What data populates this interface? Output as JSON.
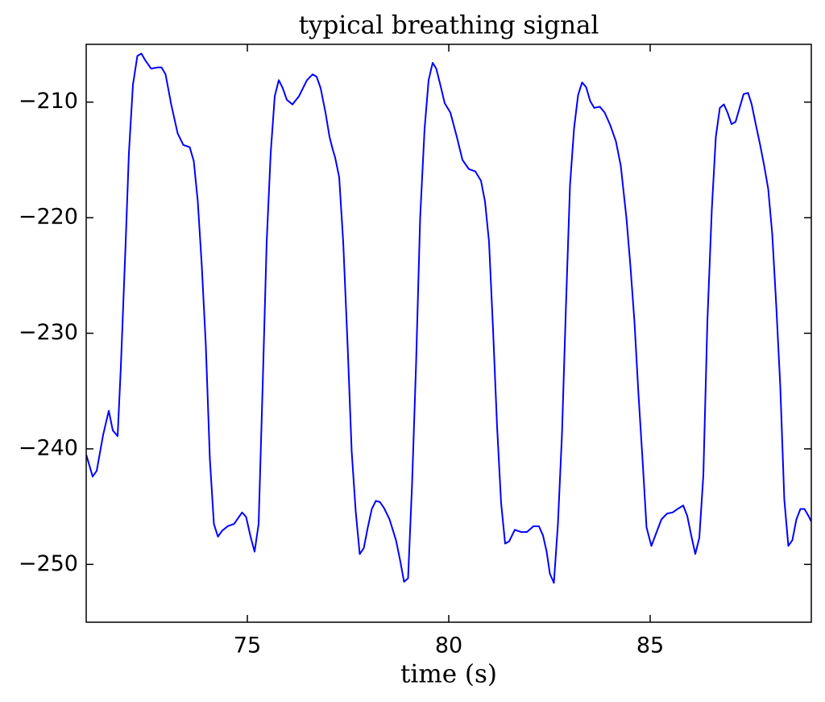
{
  "chart_data": {
    "type": "line",
    "title": "typical breathing signal",
    "xlabel": "time (s)",
    "x": [
      71.0,
      71.16,
      71.26,
      71.42,
      71.56,
      71.66,
      71.78,
      71.86,
      71.98,
      72.06,
      72.16,
      72.27,
      72.37,
      72.47,
      72.61,
      72.77,
      72.87,
      72.97,
      73.11,
      73.27,
      73.41,
      73.57,
      73.67,
      73.77,
      73.87,
      73.97,
      74.07,
      74.17,
      74.27,
      74.37,
      74.51,
      74.67,
      74.87,
      74.97,
      75.08,
      75.18,
      75.28,
      75.38,
      75.48,
      75.58,
      75.68,
      75.78,
      75.88,
      75.98,
      76.12,
      76.28,
      76.48,
      76.62,
      76.72,
      76.82,
      76.94,
      77.04,
      77.12,
      77.18,
      77.28,
      77.38,
      77.49,
      77.59,
      77.69,
      77.79,
      77.89,
      77.99,
      78.09,
      78.19,
      78.29,
      78.39,
      78.53,
      78.69,
      78.79,
      78.89,
      78.99,
      79.09,
      79.19,
      79.29,
      79.4,
      79.5,
      79.6,
      79.69,
      79.79,
      79.9,
      80.04,
      80.2,
      80.34,
      80.5,
      80.66,
      80.8,
      80.9,
      81.0,
      81.1,
      81.2,
      81.3,
      81.4,
      81.5,
      81.64,
      81.8,
      81.94,
      82.1,
      82.24,
      82.34,
      82.43,
      82.51,
      82.61,
      82.71,
      82.81,
      82.91,
      83.01,
      83.11,
      83.21,
      83.31,
      83.41,
      83.51,
      83.61,
      83.75,
      83.87,
      84.01,
      84.15,
      84.27,
      84.41,
      84.51,
      84.61,
      84.71,
      84.81,
      84.91,
      85.03,
      85.16,
      85.28,
      85.42,
      85.56,
      85.68,
      85.82,
      85.92,
      86.02,
      86.12,
      86.22,
      86.32,
      86.42,
      86.53,
      86.63,
      86.73,
      86.83,
      86.92,
      87.02,
      87.12,
      87.22,
      87.32,
      87.43,
      87.52,
      87.62,
      87.73,
      87.83,
      87.93,
      88.03,
      88.13,
      88.23,
      88.33,
      88.43,
      88.53,
      88.63,
      88.73,
      88.83,
      88.93,
      89.0
    ],
    "values": [
      -240.5,
      -242.4,
      -241.9,
      -238.8,
      -236.7,
      -238.4,
      -238.9,
      -232.9,
      -222.1,
      -214.4,
      -208.5,
      -206.0,
      -205.8,
      -206.4,
      -207.1,
      -207.0,
      -207.0,
      -207.6,
      -210.2,
      -212.7,
      -213.7,
      -213.9,
      -215.1,
      -218.6,
      -224.2,
      -231.1,
      -240.9,
      -246.5,
      -247.6,
      -247.1,
      -246.7,
      -246.5,
      -245.5,
      -245.9,
      -247.6,
      -248.9,
      -246.5,
      -234.6,
      -222.1,
      -214.4,
      -209.5,
      -208.1,
      -208.8,
      -209.8,
      -210.2,
      -209.5,
      -208.1,
      -207.6,
      -207.8,
      -208.8,
      -210.9,
      -213.0,
      -214.1,
      -214.8,
      -216.5,
      -222.1,
      -231.1,
      -240.2,
      -245.4,
      -249.1,
      -248.6,
      -246.8,
      -245.2,
      -244.5,
      -244.6,
      -245.1,
      -246.1,
      -247.9,
      -249.6,
      -251.5,
      -251.2,
      -243.0,
      -232.5,
      -220.0,
      -212.3,
      -208.1,
      -206.6,
      -207.1,
      -208.5,
      -210.1,
      -210.9,
      -213.0,
      -215.0,
      -215.8,
      -216.0,
      -216.8,
      -218.6,
      -222.1,
      -229.7,
      -238.1,
      -244.7,
      -248.2,
      -248.0,
      -247.0,
      -247.2,
      -247.2,
      -246.7,
      -246.7,
      -247.5,
      -248.9,
      -250.8,
      -251.6,
      -246.5,
      -238.8,
      -227.6,
      -217.2,
      -212.3,
      -209.4,
      -208.3,
      -208.7,
      -209.9,
      -210.5,
      -210.4,
      -210.9,
      -212.0,
      -213.4,
      -215.5,
      -220.0,
      -224.2,
      -229.0,
      -235.3,
      -240.9,
      -246.8,
      -248.4,
      -247.2,
      -246.1,
      -245.6,
      -245.5,
      -245.2,
      -244.9,
      -245.8,
      -247.5,
      -249.1,
      -247.7,
      -242.3,
      -229.0,
      -219.3,
      -213.0,
      -210.5,
      -210.2,
      -210.9,
      -211.9,
      -211.7,
      -210.5,
      -209.3,
      -209.2,
      -210.2,
      -211.9,
      -213.7,
      -215.5,
      -217.5,
      -221.4,
      -227.6,
      -234.6,
      -244.4,
      -248.4,
      -247.9,
      -246.1,
      -245.2,
      -245.2,
      -245.8,
      -246.3
    ],
    "color": "#0000ff",
    "xlim": [
      71,
      89
    ],
    "xticks": [
      75,
      80,
      85
    ],
    "ylim": [
      -255,
      -205
    ],
    "yticks": [
      {
        "value": -250,
        "label": "−250"
      },
      {
        "value": -240,
        "label": "−240"
      },
      {
        "value": -230,
        "label": "−230"
      },
      {
        "value": -220,
        "label": "−220"
      },
      {
        "value": -210,
        "label": "−210"
      }
    ],
    "grid": false
  }
}
